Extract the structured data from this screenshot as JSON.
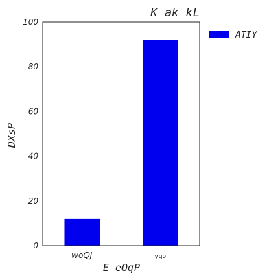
{
  "chart_data": {
    "type": "bar",
    "title": "K ak kL",
    "xlabel": "E eOqP",
    "ylabel": "DXsP",
    "categories": [
      "woQJ",
      "yqo"
    ],
    "series": [
      {
        "name": "ATIY",
        "values": [
          12,
          92
        ],
        "color": "#0000ee"
      }
    ],
    "ylim": [
      0,
      100
    ],
    "yticks": [
      0,
      20,
      40,
      60,
      80,
      100
    ],
    "grid": false,
    "legend": "outside-top-right"
  }
}
